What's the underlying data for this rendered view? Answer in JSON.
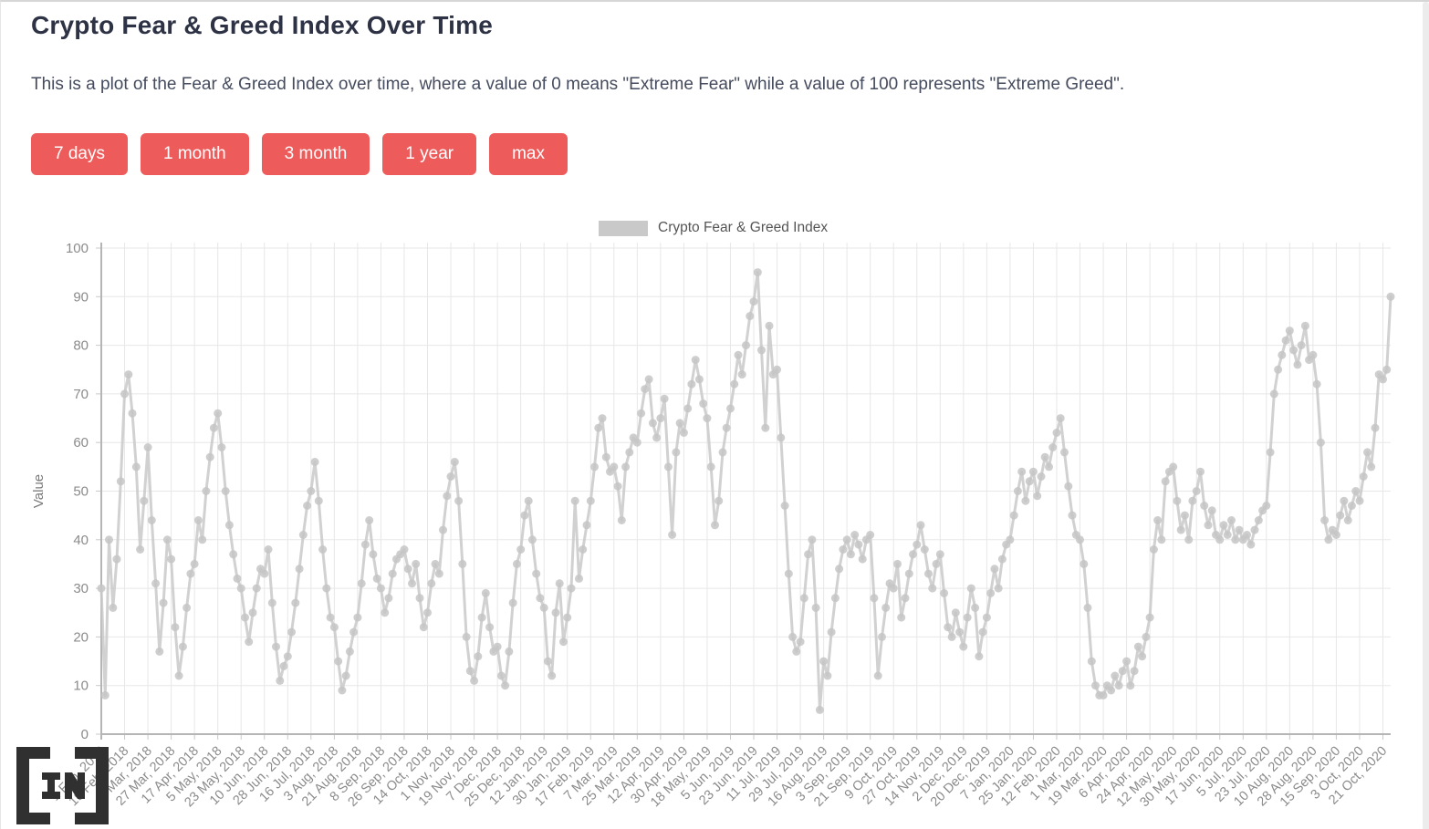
{
  "header": {
    "title": "Crypto Fear & Greed Index Over Time",
    "description": "This is a plot of the Fear & Greed Index over time, where a value of 0 means \"Extreme Fear\" while a value of 100 represents \"Extreme Greed\"."
  },
  "range_buttons": [
    {
      "label": "7 days"
    },
    {
      "label": "1 month"
    },
    {
      "label": "3 month"
    },
    {
      "label": "1 year"
    },
    {
      "label": "max"
    }
  ],
  "legend": {
    "label": "Crypto Fear & Greed Index",
    "swatch_color": "#c9c9c9"
  },
  "logo_text": "[IN]",
  "colors": {
    "accent": "#ee5b5b",
    "series": "#c9c9c9",
    "grid": "#e7e7e7",
    "axis": "#b5b5b5",
    "tick_text": "#8b8b8b",
    "title_text": "#2e3245"
  },
  "chart_data": {
    "type": "line",
    "series_name": "Crypto Fear & Greed Index",
    "ylabel": "Value",
    "ylim": [
      0,
      100
    ],
    "y_ticks": [
      0,
      10,
      20,
      30,
      40,
      50,
      60,
      70,
      80,
      90,
      100
    ],
    "grid": true,
    "legend_position": "top-center",
    "marker": "circle",
    "x_tick_sample_step": 6,
    "x_tick_labels": [
      "1 Feb, 2018",
      "19 Feb, 2018",
      "9 Mar, 2018",
      "27 Mar, 2018",
      "17 Apr, 2018",
      "5 May, 2018",
      "23 May, 2018",
      "10 Jun, 2018",
      "28 Jun, 2018",
      "16 Jul, 2018",
      "3 Aug, 2018",
      "21 Aug, 2018",
      "8 Sep, 2018",
      "26 Sep, 2018",
      "14 Oct, 2018",
      "1 Nov, 2018",
      "19 Nov, 2018",
      "7 Dec, 2018",
      "25 Dec, 2018",
      "12 Jan, 2019",
      "30 Jan, 2019",
      "17 Feb, 2019",
      "7 Mar, 2019",
      "25 Mar, 2019",
      "12 Apr, 2019",
      "30 Apr, 2019",
      "18 May, 2019",
      "5 Jun, 2019",
      "23 Jun, 2019",
      "11 Jul, 2019",
      "29 Jul, 2019",
      "16 Aug, 2019",
      "3 Sep, 2019",
      "21 Sep, 2019",
      "9 Oct, 2019",
      "27 Oct, 2019",
      "14 Nov, 2019",
      "2 Dec, 2019",
      "20 Dec, 2019",
      "7 Jan, 2020",
      "25 Jan, 2020",
      "12 Feb, 2020",
      "1 Mar, 2020",
      "19 Mar, 2020",
      "6 Apr, 2020",
      "24 Apr, 2020",
      "12 May, 2020",
      "30 May, 2020",
      "17 Jun, 2020",
      "5 Jul, 2020",
      "23 Jul, 2020",
      "10 Aug, 2020",
      "28 Aug, 2020",
      "15 Sep, 2020",
      "3 Oct, 2020",
      "21 Oct, 2020"
    ],
    "values": [
      30,
      8,
      40,
      26,
      36,
      52,
      70,
      74,
      66,
      55,
      38,
      48,
      59,
      44,
      31,
      17,
      27,
      40,
      36,
      22,
      12,
      18,
      26,
      33,
      35,
      44,
      40,
      50,
      57,
      63,
      66,
      59,
      50,
      43,
      37,
      32,
      30,
      24,
      19,
      25,
      30,
      34,
      33,
      38,
      27,
      18,
      11,
      14,
      16,
      21,
      27,
      34,
      41,
      47,
      50,
      56,
      48,
      38,
      30,
      24,
      22,
      15,
      9,
      12,
      17,
      21,
      24,
      31,
      39,
      44,
      37,
      32,
      30,
      25,
      28,
      33,
      36,
      37,
      38,
      34,
      31,
      35,
      28,
      22,
      25,
      31,
      35,
      33,
      42,
      49,
      53,
      56,
      48,
      35,
      20,
      13,
      11,
      16,
      24,
      29,
      22,
      17,
      18,
      12,
      10,
      17,
      27,
      35,
      38,
      45,
      48,
      40,
      33,
      28,
      26,
      15,
      12,
      25,
      31,
      19,
      24,
      30,
      48,
      32,
      38,
      43,
      48,
      55,
      63,
      65,
      57,
      54,
      55,
      51,
      44,
      55,
      58,
      61,
      60,
      66,
      71,
      73,
      64,
      61,
      65,
      69,
      55,
      41,
      58,
      64,
      62,
      67,
      72,
      77,
      73,
      68,
      65,
      55,
      43,
      48,
      58,
      63,
      67,
      72,
      78,
      74,
      80,
      86,
      89,
      95,
      79,
      63,
      84,
      74,
      75,
      61,
      47,
      33,
      20,
      17,
      19,
      28,
      37,
      40,
      26,
      5,
      15,
      12,
      21,
      28,
      34,
      38,
      40,
      37,
      41,
      39,
      36,
      40,
      41,
      28,
      12,
      20,
      26,
      31,
      30,
      35,
      24,
      28,
      33,
      37,
      39,
      43,
      38,
      33,
      30,
      35,
      37,
      29,
      22,
      20,
      25,
      21,
      18,
      24,
      30,
      26,
      16,
      21,
      24,
      29,
      34,
      30,
      36,
      39,
      40,
      45,
      50,
      54,
      48,
      52,
      54,
      49,
      53,
      57,
      55,
      59,
      62,
      65,
      58,
      51,
      45,
      41,
      40,
      35,
      26,
      15,
      10,
      8,
      8,
      10,
      9,
      12,
      10,
      13,
      15,
      10,
      13,
      18,
      16,
      20,
      24,
      38,
      44,
      40,
      52,
      54,
      55,
      48,
      42,
      45,
      40,
      48,
      50,
      54,
      47,
      43,
      46,
      41,
      40,
      43,
      41,
      44,
      40,
      42,
      40,
      41,
      39,
      42,
      44,
      46,
      47,
      58,
      70,
      75,
      78,
      81,
      83,
      79,
      76,
      80,
      84,
      77,
      78,
      72,
      60,
      44,
      40,
      42,
      41,
      45,
      48,
      44,
      47,
      50,
      48,
      53,
      58,
      55,
      63,
      74,
      73,
      75,
      90
    ]
  }
}
